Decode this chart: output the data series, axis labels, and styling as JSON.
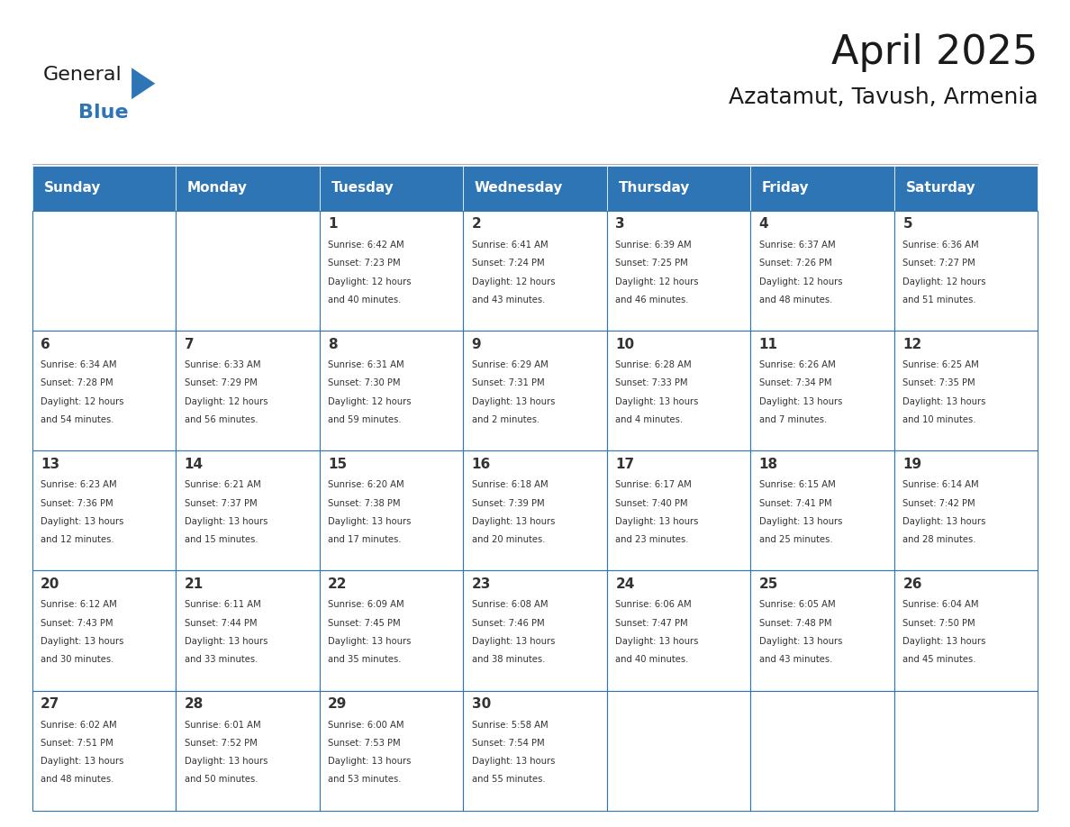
{
  "title": "April 2025",
  "subtitle": "Azatamut, Tavush, Armenia",
  "header_color": "#2E75B6",
  "header_text_color": "#FFFFFF",
  "cell_bg_color": "#FFFFFF",
  "cell_border_color": "#2E75B6",
  "day_names": [
    "Sunday",
    "Monday",
    "Tuesday",
    "Wednesday",
    "Thursday",
    "Friday",
    "Saturday"
  ],
  "days": [
    {
      "day": 1,
      "col": 2,
      "row": 0,
      "sunrise": "6:42 AM",
      "sunset": "7:23 PM",
      "daylight": "12 hours and 40 minutes."
    },
    {
      "day": 2,
      "col": 3,
      "row": 0,
      "sunrise": "6:41 AM",
      "sunset": "7:24 PM",
      "daylight": "12 hours and 43 minutes."
    },
    {
      "day": 3,
      "col": 4,
      "row": 0,
      "sunrise": "6:39 AM",
      "sunset": "7:25 PM",
      "daylight": "12 hours and 46 minutes."
    },
    {
      "day": 4,
      "col": 5,
      "row": 0,
      "sunrise": "6:37 AM",
      "sunset": "7:26 PM",
      "daylight": "12 hours and 48 minutes."
    },
    {
      "day": 5,
      "col": 6,
      "row": 0,
      "sunrise": "6:36 AM",
      "sunset": "7:27 PM",
      "daylight": "12 hours and 51 minutes."
    },
    {
      "day": 6,
      "col": 0,
      "row": 1,
      "sunrise": "6:34 AM",
      "sunset": "7:28 PM",
      "daylight": "12 hours and 54 minutes."
    },
    {
      "day": 7,
      "col": 1,
      "row": 1,
      "sunrise": "6:33 AM",
      "sunset": "7:29 PM",
      "daylight": "12 hours and 56 minutes."
    },
    {
      "day": 8,
      "col": 2,
      "row": 1,
      "sunrise": "6:31 AM",
      "sunset": "7:30 PM",
      "daylight": "12 hours and 59 minutes."
    },
    {
      "day": 9,
      "col": 3,
      "row": 1,
      "sunrise": "6:29 AM",
      "sunset": "7:31 PM",
      "daylight": "13 hours and 2 minutes."
    },
    {
      "day": 10,
      "col": 4,
      "row": 1,
      "sunrise": "6:28 AM",
      "sunset": "7:33 PM",
      "daylight": "13 hours and 4 minutes."
    },
    {
      "day": 11,
      "col": 5,
      "row": 1,
      "sunrise": "6:26 AM",
      "sunset": "7:34 PM",
      "daylight": "13 hours and 7 minutes."
    },
    {
      "day": 12,
      "col": 6,
      "row": 1,
      "sunrise": "6:25 AM",
      "sunset": "7:35 PM",
      "daylight": "13 hours and 10 minutes."
    },
    {
      "day": 13,
      "col": 0,
      "row": 2,
      "sunrise": "6:23 AM",
      "sunset": "7:36 PM",
      "daylight": "13 hours and 12 minutes."
    },
    {
      "day": 14,
      "col": 1,
      "row": 2,
      "sunrise": "6:21 AM",
      "sunset": "7:37 PM",
      "daylight": "13 hours and 15 minutes."
    },
    {
      "day": 15,
      "col": 2,
      "row": 2,
      "sunrise": "6:20 AM",
      "sunset": "7:38 PM",
      "daylight": "13 hours and 17 minutes."
    },
    {
      "day": 16,
      "col": 3,
      "row": 2,
      "sunrise": "6:18 AM",
      "sunset": "7:39 PM",
      "daylight": "13 hours and 20 minutes."
    },
    {
      "day": 17,
      "col": 4,
      "row": 2,
      "sunrise": "6:17 AM",
      "sunset": "7:40 PM",
      "daylight": "13 hours and 23 minutes."
    },
    {
      "day": 18,
      "col": 5,
      "row": 2,
      "sunrise": "6:15 AM",
      "sunset": "7:41 PM",
      "daylight": "13 hours and 25 minutes."
    },
    {
      "day": 19,
      "col": 6,
      "row": 2,
      "sunrise": "6:14 AM",
      "sunset": "7:42 PM",
      "daylight": "13 hours and 28 minutes."
    },
    {
      "day": 20,
      "col": 0,
      "row": 3,
      "sunrise": "6:12 AM",
      "sunset": "7:43 PM",
      "daylight": "13 hours and 30 minutes."
    },
    {
      "day": 21,
      "col": 1,
      "row": 3,
      "sunrise": "6:11 AM",
      "sunset": "7:44 PM",
      "daylight": "13 hours and 33 minutes."
    },
    {
      "day": 22,
      "col": 2,
      "row": 3,
      "sunrise": "6:09 AM",
      "sunset": "7:45 PM",
      "daylight": "13 hours and 35 minutes."
    },
    {
      "day": 23,
      "col": 3,
      "row": 3,
      "sunrise": "6:08 AM",
      "sunset": "7:46 PM",
      "daylight": "13 hours and 38 minutes."
    },
    {
      "day": 24,
      "col": 4,
      "row": 3,
      "sunrise": "6:06 AM",
      "sunset": "7:47 PM",
      "daylight": "13 hours and 40 minutes."
    },
    {
      "day": 25,
      "col": 5,
      "row": 3,
      "sunrise": "6:05 AM",
      "sunset": "7:48 PM",
      "daylight": "13 hours and 43 minutes."
    },
    {
      "day": 26,
      "col": 6,
      "row": 3,
      "sunrise": "6:04 AM",
      "sunset": "7:50 PM",
      "daylight": "13 hours and 45 minutes."
    },
    {
      "day": 27,
      "col": 0,
      "row": 4,
      "sunrise": "6:02 AM",
      "sunset": "7:51 PM",
      "daylight": "13 hours and 48 minutes."
    },
    {
      "day": 28,
      "col": 1,
      "row": 4,
      "sunrise": "6:01 AM",
      "sunset": "7:52 PM",
      "daylight": "13 hours and 50 minutes."
    },
    {
      "day": 29,
      "col": 2,
      "row": 4,
      "sunrise": "6:00 AM",
      "sunset": "7:53 PM",
      "daylight": "13 hours and 53 minutes."
    },
    {
      "day": 30,
      "col": 3,
      "row": 4,
      "sunrise": "5:58 AM",
      "sunset": "7:54 PM",
      "daylight": "13 hours and 55 minutes."
    }
  ],
  "logo_text_general": "General",
  "logo_text_blue": "Blue",
  "logo_blue": "#2E75B6"
}
